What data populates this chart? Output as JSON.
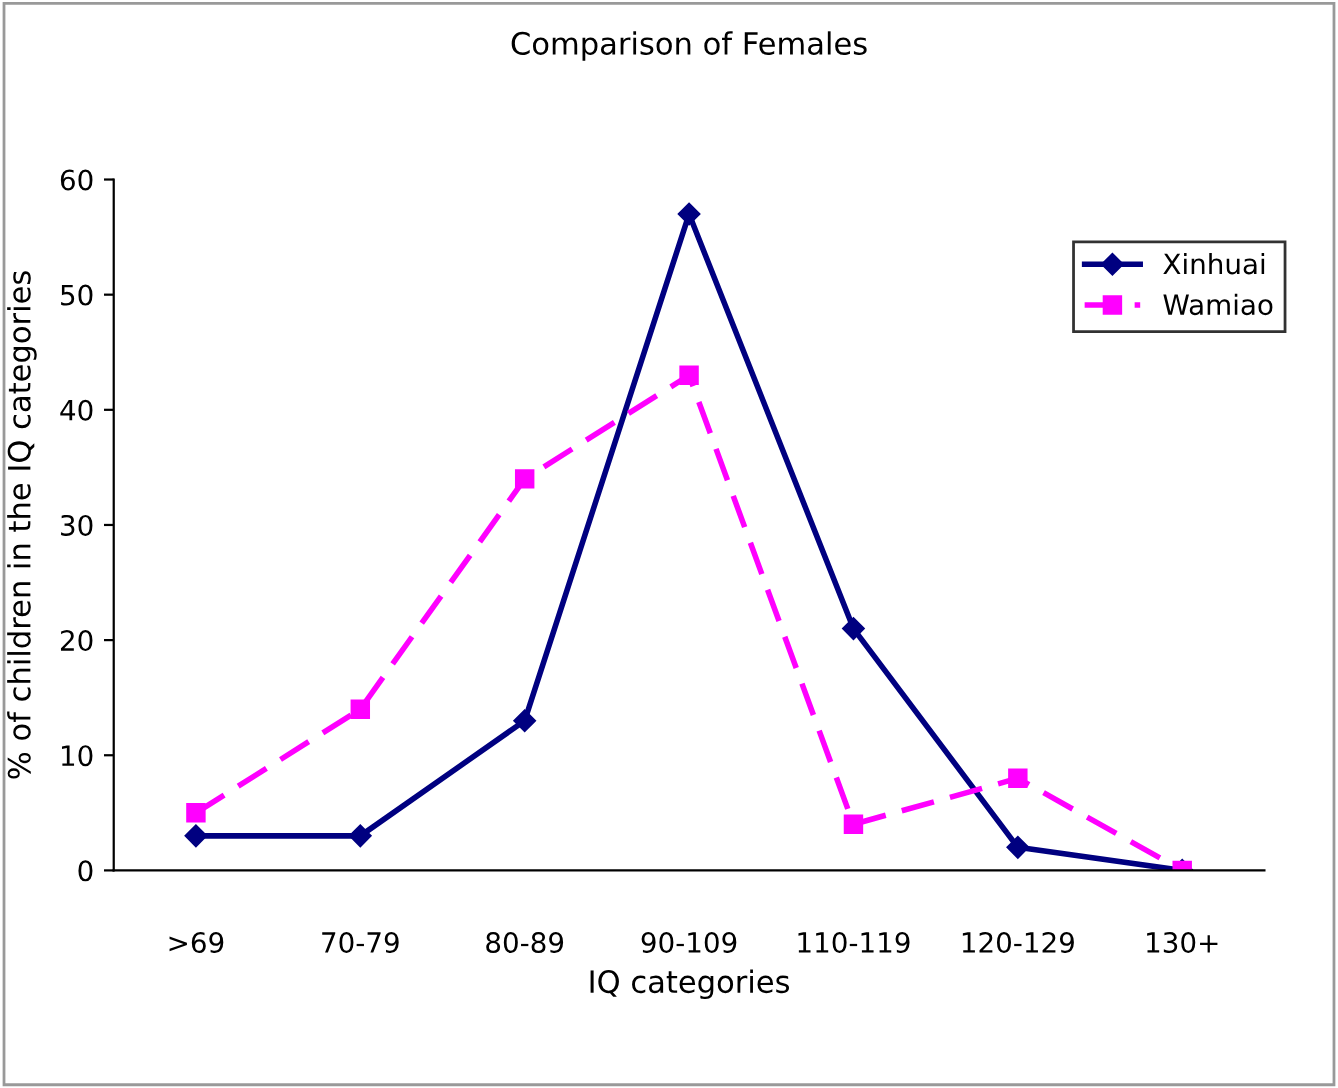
{
  "chart_data": {
    "type": "line",
    "title": "Comparison of Females",
    "xlabel": "IQ categories",
    "ylabel": "% of children in the IQ categories",
    "categories": [
      ">69",
      "70-79",
      "80-89",
      "90-109",
      "110-119",
      "120-129",
      "130+"
    ],
    "series": [
      {
        "name": "Xinhuai",
        "color": "#000080",
        "values": [
          3,
          3,
          13,
          57,
          21,
          2,
          0
        ],
        "marker": "diamond",
        "line_style": "solid"
      },
      {
        "name": "Wamiao",
        "color": "#ff00ff",
        "values": [
          5,
          14,
          34,
          43,
          4,
          8,
          0
        ],
        "marker": "square",
        "line_style": "dashed"
      }
    ],
    "ylim": [
      0,
      60
    ],
    "yticks": [
      0,
      10,
      20,
      30,
      40,
      50,
      60
    ],
    "grid": false,
    "legend": "top right"
  }
}
